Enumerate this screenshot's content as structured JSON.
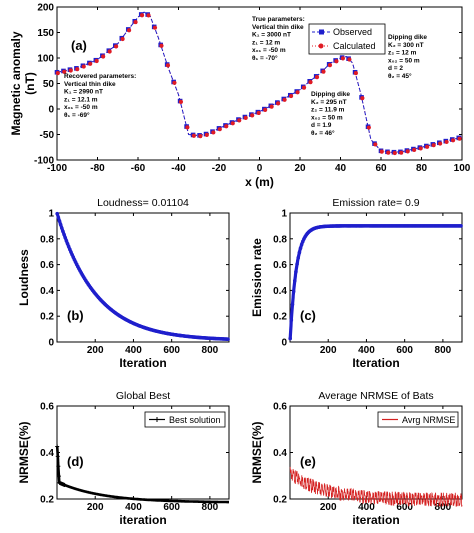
{
  "chart_data": [
    {
      "id": "a",
      "type": "line",
      "panel_label": "(a)",
      "xlabel": "x (m)",
      "ylabel_line1": "Magnetic anomaly",
      "ylabel_line2": "(nT)",
      "xlim": [
        -100,
        100
      ],
      "ylim": [
        -100,
        200
      ],
      "xticks": [
        "-100",
        "-80",
        "-60",
        "-40",
        "-20",
        "0",
        "20",
        "40",
        "60",
        "80",
        "100"
      ],
      "yticks": [
        "-100",
        "-50",
        "0",
        "50",
        "100",
        "150",
        "200"
      ],
      "grid": false,
      "legend_position": "top-center",
      "series": [
        {
          "name": "Observed",
          "style": "dashed-square",
          "color": "#1f1fcc"
        },
        {
          "name": "Calculated",
          "style": "dotted-circle",
          "color": "#e01b24"
        }
      ],
      "x": [
        -100,
        -90,
        -80,
        -70,
        -65,
        -60,
        -57,
        -54,
        -50,
        -45,
        -40,
        -35,
        -30,
        -25,
        -20,
        -10,
        0,
        10,
        20,
        25,
        30,
        35,
        40,
        43,
        46,
        50,
        55,
        60,
        65,
        70,
        80,
        90,
        100
      ],
      "y": [
        72,
        80,
        97,
        128,
        155,
        180,
        190,
        182,
        140,
        80,
        28,
        -50,
        -52,
        -48,
        -38,
        -20,
        -5,
        15,
        38,
        55,
        70,
        90,
        100,
        103,
        90,
        30,
        -60,
        -82,
        -85,
        -84,
        -75,
        -65,
        -55
      ],
      "annotations": [
        {
          "key": "true",
          "lines": [
            "True parameters:",
            "Vertical thin dike",
            "K₁ = 3000 nT",
            "z₁ = 12 m",
            "x₀₁ = -50 m",
            "θ₁ = -70°"
          ]
        },
        {
          "key": "recovered",
          "lines": [
            "Recovered parameters:",
            "Vertical thin dike",
            "K₁ = 2990 nT",
            "z₁ = 12.1 m",
            "x₀₁ = -50 m",
            "θ₁ = -69°"
          ]
        },
        {
          "key": "dip_true",
          "lines": [
            "Dipping dike",
            "K₂ = 300 nT",
            "z₂ = 12 m",
            "x₀₂ = 50 m",
            "d = 2",
            "θ₂ = 45°"
          ]
        },
        {
          "key": "dip_rec",
          "lines": [
            "Dipping dike",
            "K₂ = 295 nT",
            "z₂ = 11.9 m",
            "x₀₂ = 50 m",
            "d = 1.9",
            "θ₂ = 46°"
          ]
        }
      ]
    },
    {
      "id": "b",
      "type": "line",
      "panel_label": "(b)",
      "title": "Loudness= 0.01104",
      "xlabel": "Iteration",
      "ylabel": "Loudness",
      "xlim": [
        0,
        900
      ],
      "ylim": [
        0,
        1
      ],
      "xticks": [
        "200",
        "400",
        "600",
        "800"
      ],
      "yticks": [
        "0",
        "0.2",
        "0.4",
        "0.6",
        "0.8",
        "1"
      ],
      "series": [
        {
          "name": "",
          "color": "#1f1fcc"
        }
      ],
      "model": {
        "kind": "exp_decay",
        "start": 1,
        "end": 0.011,
        "rate": 0.005
      }
    },
    {
      "id": "c",
      "type": "line",
      "panel_label": "(c)",
      "title": "Emission rate= 0.9",
      "xlabel": "Iteration",
      "ylabel": "Emission rate",
      "xlim": [
        0,
        900
      ],
      "ylim": [
        0,
        1
      ],
      "xticks": [
        "200",
        "400",
        "600",
        "800"
      ],
      "yticks": [
        "0",
        "0.2",
        "0.4",
        "0.6",
        "0.8",
        "1"
      ],
      "series": [
        {
          "name": "",
          "color": "#1f1fcc"
        }
      ],
      "model": {
        "kind": "exp_rise",
        "start": 0,
        "end": 0.9,
        "rate": 0.03
      }
    },
    {
      "id": "d",
      "type": "line",
      "panel_label": "(d)",
      "title": "Global Best",
      "xlabel": "iteration",
      "ylabel": "NRMSE(%)",
      "xlim": [
        0,
        900
      ],
      "ylim": [
        0.2,
        0.6
      ],
      "xticks": [
        "200",
        "400",
        "600",
        "800"
      ],
      "yticks": [
        "0.2",
        "0.4",
        "0.6"
      ],
      "legend_position": "top-right",
      "series": [
        {
          "name": "Best solution",
          "color": "#000000"
        }
      ],
      "model": {
        "kind": "best",
        "start": 0.44,
        "plateau": 0.27,
        "end": 0.185
      }
    },
    {
      "id": "e",
      "type": "line",
      "panel_label": "(e)",
      "title": "Average NRMSE of Bats",
      "xlabel": "iteration",
      "ylabel": "NRMSE(%)",
      "xlim": [
        0,
        900
      ],
      "ylim": [
        0.2,
        0.6
      ],
      "xticks": [
        "200",
        "400",
        "600",
        "800"
      ],
      "yticks": [
        "0.2",
        "0.4",
        "0.6"
      ],
      "legend_position": "top-right",
      "series": [
        {
          "name": "Avrg NRMSE",
          "color": "#d42020"
        }
      ],
      "model": {
        "kind": "noisy",
        "start": 0.32,
        "end": 0.205
      }
    }
  ]
}
